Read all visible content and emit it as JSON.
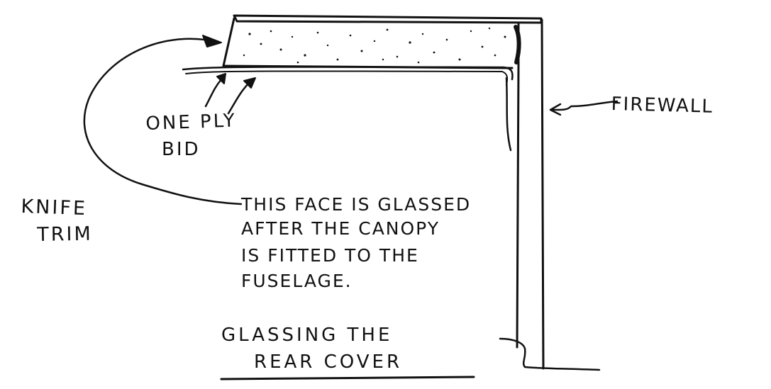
{
  "labels": {
    "firewall": "FIREWALL",
    "one_ply": "ONE PLY",
    "bid": "BID",
    "knife": "KNIFE",
    "trim": "TRIM"
  },
  "note": {
    "line1": "THIS FACE IS GLASSED",
    "line2": "AFTER THE CANOPY",
    "line3": "IS FITTED TO THE",
    "line4": "FUSELAGE."
  },
  "title": {
    "line1": "GLASSING THE",
    "line2": "REAR COVER"
  },
  "colors": {
    "ink": "#111111",
    "paper": "#ffffff"
  }
}
